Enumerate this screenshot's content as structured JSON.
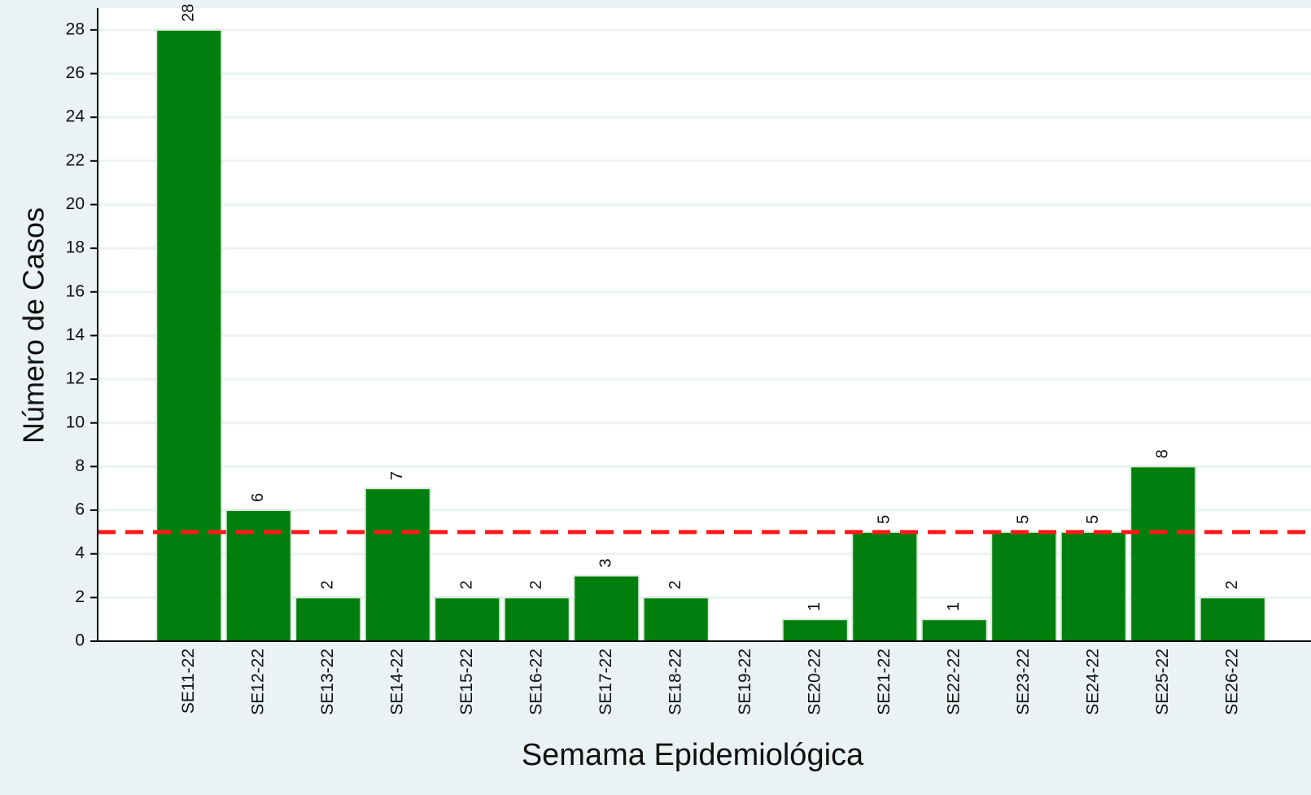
{
  "chart_data": {
    "type": "bar",
    "x_label": "Semama Epidemiológica",
    "y_label": "Número de Casos",
    "categories": [
      "SE11-22",
      "SE12-22",
      "SE13-22",
      "SE14-22",
      "SE15-22",
      "SE16-22",
      "SE17-22",
      "SE18-22",
      "SE19-22",
      "SE20-22",
      "SE21-22",
      "SE22-22",
      "SE23-22",
      "SE24-22",
      "SE25-22",
      "SE26-22"
    ],
    "values": [
      28,
      6,
      2,
      7,
      2,
      2,
      3,
      2,
      null,
      1,
      5,
      1,
      5,
      5,
      8,
      2
    ],
    "color": "#007f0e",
    "ylim": [
      0,
      29
    ],
    "yticks": [
      0,
      2,
      4,
      6,
      8,
      10,
      12,
      14,
      16,
      18,
      20,
      22,
      24,
      26,
      28
    ],
    "grid": true,
    "reference_line": {
      "value": 5,
      "color": "#ff1a1a"
    }
  }
}
